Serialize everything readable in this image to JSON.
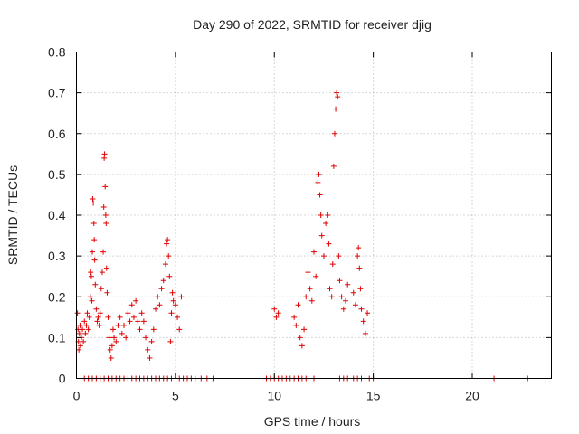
{
  "chart_data": {
    "type": "scatter",
    "title": "Day 290 of 2022, SRMTID for receiver djig",
    "xlabel": "GPS time / hours",
    "ylabel": "SRMTID / TECUs",
    "xlim": [
      0,
      24
    ],
    "ylim": [
      0,
      0.8
    ],
    "x_ticks": [
      0,
      5,
      10,
      15,
      20
    ],
    "x_tick_labels": [
      "0",
      "5",
      "10",
      "15",
      "20"
    ],
    "y_ticks": [
      0,
      0.1,
      0.2,
      0.3,
      0.4,
      0.5,
      0.6,
      0.7,
      0.8
    ],
    "y_tick_labels": [
      "0",
      "0.1",
      "0.2",
      "0.3",
      "0.4",
      "0.5",
      "0.6",
      "0.7",
      "0.8"
    ],
    "grid": true,
    "marker": "+",
    "color": "#e00000",
    "series": [
      {
        "name": "SRMTID",
        "points": [
          [
            0.05,
            0.16
          ],
          [
            0.08,
            0.12
          ],
          [
            0.1,
            0.09
          ],
          [
            0.12,
            0.07
          ],
          [
            0.15,
            0.11
          ],
          [
            0.18,
            0.13
          ],
          [
            0.2,
            0.08
          ],
          [
            0.25,
            0.1
          ],
          [
            0.3,
            0.12
          ],
          [
            0.35,
            0.09
          ],
          [
            0.4,
            0.14
          ],
          [
            0.45,
            0.11
          ],
          [
            0.5,
            0.13
          ],
          [
            0.55,
            0.16
          ],
          [
            0.6,
            0.12
          ],
          [
            0.65,
            0.15
          ],
          [
            0.7,
            0.2
          ],
          [
            0.72,
            0.26
          ],
          [
            0.75,
            0.25
          ],
          [
            0.78,
            0.19
          ],
          [
            0.8,
            0.31
          ],
          [
            0.82,
            0.44
          ],
          [
            0.85,
            0.43
          ],
          [
            0.88,
            0.38
          ],
          [
            0.9,
            0.34
          ],
          [
            0.92,
            0.29
          ],
          [
            0.95,
            0.23
          ],
          [
            1.0,
            0.17
          ],
          [
            1.05,
            0.14
          ],
          [
            1.1,
            0.15
          ],
          [
            1.15,
            0.13
          ],
          [
            1.2,
            0.16
          ],
          [
            1.25,
            0.22
          ],
          [
            1.3,
            0.26
          ],
          [
            1.35,
            0.31
          ],
          [
            1.38,
            0.42
          ],
          [
            1.4,
            0.54
          ],
          [
            1.42,
            0.55
          ],
          [
            1.45,
            0.47
          ],
          [
            1.48,
            0.4
          ],
          [
            1.5,
            0.38
          ],
          [
            1.52,
            0.27
          ],
          [
            1.55,
            0.21
          ],
          [
            1.6,
            0.15
          ],
          [
            1.65,
            0.1
          ],
          [
            1.7,
            0.07
          ],
          [
            1.75,
            0.05
          ],
          [
            1.8,
            0.08
          ],
          [
            1.85,
            0.12
          ],
          [
            1.9,
            0.1
          ],
          [
            2.0,
            0.09
          ],
          [
            2.1,
            0.13
          ],
          [
            2.2,
            0.15
          ],
          [
            2.3,
            0.11
          ],
          [
            2.4,
            0.13
          ],
          [
            2.5,
            0.1
          ],
          [
            2.6,
            0.16
          ],
          [
            2.7,
            0.14
          ],
          [
            2.8,
            0.18
          ],
          [
            2.9,
            0.15
          ],
          [
            3.0,
            0.19
          ],
          [
            3.1,
            0.14
          ],
          [
            3.2,
            0.12
          ],
          [
            3.3,
            0.16
          ],
          [
            3.4,
            0.14
          ],
          [
            3.5,
            0.1
          ],
          [
            3.6,
            0.07
          ],
          [
            3.7,
            0.05
          ],
          [
            3.8,
            0.09
          ],
          [
            3.9,
            0.12
          ],
          [
            4.0,
            0.17
          ],
          [
            4.1,
            0.2
          ],
          [
            4.2,
            0.18
          ],
          [
            4.3,
            0.22
          ],
          [
            4.4,
            0.24
          ],
          [
            4.5,
            0.28
          ],
          [
            4.55,
            0.33
          ],
          [
            4.6,
            0.34
          ],
          [
            4.65,
            0.3
          ],
          [
            4.7,
            0.25
          ],
          [
            4.75,
            0.09
          ],
          [
            4.8,
            0.16
          ],
          [
            4.85,
            0.21
          ],
          [
            4.9,
            0.19
          ],
          [
            5.0,
            0.18
          ],
          [
            5.1,
            0.15
          ],
          [
            5.2,
            0.12
          ],
          [
            5.3,
            0.2
          ],
          [
            10.0,
            0.17
          ],
          [
            10.1,
            0.15
          ],
          [
            10.2,
            0.16
          ],
          [
            11.0,
            0.15
          ],
          [
            11.1,
            0.13
          ],
          [
            11.2,
            0.18
          ],
          [
            11.3,
            0.1
          ],
          [
            11.4,
            0.08
          ],
          [
            11.5,
            0.12
          ],
          [
            11.6,
            0.2
          ],
          [
            11.7,
            0.26
          ],
          [
            11.8,
            0.22
          ],
          [
            11.9,
            0.19
          ],
          [
            12.0,
            0.31
          ],
          [
            12.1,
            0.25
          ],
          [
            12.2,
            0.48
          ],
          [
            12.25,
            0.5
          ],
          [
            12.3,
            0.45
          ],
          [
            12.35,
            0.4
          ],
          [
            12.4,
            0.35
          ],
          [
            12.5,
            0.3
          ],
          [
            12.6,
            0.38
          ],
          [
            12.7,
            0.4
          ],
          [
            12.75,
            0.33
          ],
          [
            12.8,
            0.22
          ],
          [
            12.9,
            0.2
          ],
          [
            12.95,
            0.28
          ],
          [
            13.0,
            0.52
          ],
          [
            13.05,
            0.6
          ],
          [
            13.1,
            0.66
          ],
          [
            13.15,
            0.7
          ],
          [
            13.2,
            0.69
          ],
          [
            13.25,
            0.3
          ],
          [
            13.3,
            0.24
          ],
          [
            13.4,
            0.2
          ],
          [
            13.5,
            0.17
          ],
          [
            13.6,
            0.19
          ],
          [
            13.7,
            0.23
          ],
          [
            14.0,
            0.21
          ],
          [
            14.1,
            0.18
          ],
          [
            14.2,
            0.3
          ],
          [
            14.25,
            0.32
          ],
          [
            14.3,
            0.27
          ],
          [
            14.35,
            0.22
          ],
          [
            14.4,
            0.17
          ],
          [
            14.5,
            0.14
          ],
          [
            14.6,
            0.11
          ],
          [
            14.7,
            0.16
          ],
          [
            0.4,
            0
          ],
          [
            0.6,
            0
          ],
          [
            0.8,
            0
          ],
          [
            1.0,
            0
          ],
          [
            1.2,
            0
          ],
          [
            1.4,
            0
          ],
          [
            1.6,
            0
          ],
          [
            1.8,
            0
          ],
          [
            2.0,
            0
          ],
          [
            2.2,
            0
          ],
          [
            2.4,
            0
          ],
          [
            2.6,
            0
          ],
          [
            2.8,
            0
          ],
          [
            3.0,
            0
          ],
          [
            3.2,
            0
          ],
          [
            3.4,
            0
          ],
          [
            3.6,
            0
          ],
          [
            3.8,
            0
          ],
          [
            4.0,
            0
          ],
          [
            4.2,
            0
          ],
          [
            4.4,
            0
          ],
          [
            4.6,
            0
          ],
          [
            4.8,
            0
          ],
          [
            5.2,
            0
          ],
          [
            5.4,
            0
          ],
          [
            5.6,
            0
          ],
          [
            5.8,
            0
          ],
          [
            6.0,
            0
          ],
          [
            6.3,
            0
          ],
          [
            6.6,
            0
          ],
          [
            6.9,
            0
          ],
          [
            9.6,
            0
          ],
          [
            9.8,
            0
          ],
          [
            10.0,
            0
          ],
          [
            10.2,
            0
          ],
          [
            10.4,
            0
          ],
          [
            10.6,
            0
          ],
          [
            10.8,
            0
          ],
          [
            11.0,
            0
          ],
          [
            11.2,
            0
          ],
          [
            11.4,
            0
          ],
          [
            11.6,
            0
          ],
          [
            12.0,
            0
          ],
          [
            13.3,
            0
          ],
          [
            13.5,
            0
          ],
          [
            13.7,
            0
          ],
          [
            14.0,
            0
          ],
          [
            14.2,
            0
          ],
          [
            14.4,
            0
          ],
          [
            14.8,
            0
          ],
          [
            15.0,
            0
          ],
          [
            21.1,
            0
          ],
          [
            22.8,
            0
          ]
        ]
      }
    ]
  }
}
